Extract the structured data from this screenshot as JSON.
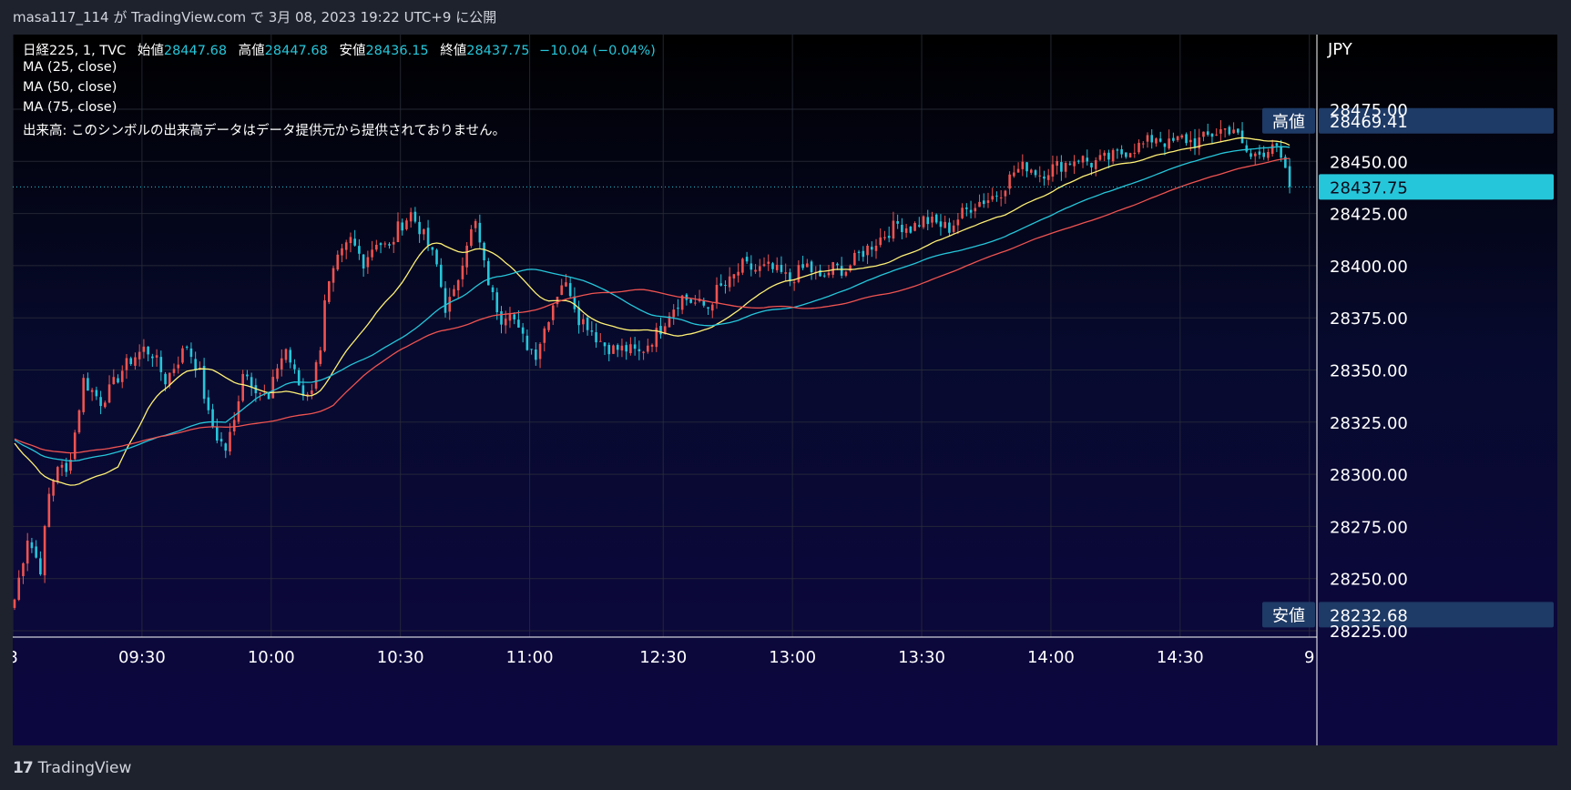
{
  "header": {
    "text": "masa117_114 が TradingView.com で 3月 08, 2023 19:22 UTC+9 に公開"
  },
  "legend": {
    "symbol": "日経225, 1, TVC",
    "open_label": "始値",
    "open": "28447.68",
    "high_label": "高値",
    "high": "28447.68",
    "low_label": "安値",
    "low": "28436.15",
    "close_label": "終値",
    "close": "28437.75",
    "change": "−10.04 (−0.04%)",
    "ma1": "MA (25, close)",
    "ma2": "MA (50, close)",
    "ma3": "MA (75, close)",
    "volume_note": "出来高: このシンボルの出来高データはデータ提供元から提供されておりません。"
  },
  "currency": "JPY",
  "footer": {
    "brand": "TradingView"
  },
  "colors": {
    "up": "#ef5350",
    "down": "#26c6da",
    "ma25": "#fff176",
    "ma50": "#26c6da",
    "ma75": "#ef5350",
    "price_tag": "#26c6da",
    "hl_tag": "#1e3a66"
  },
  "chart_data": {
    "type": "candlestick",
    "symbol": "日経225",
    "interval": "1",
    "y_ticks": [
      28475,
      28450,
      28425,
      28400,
      28375,
      28350,
      28325,
      28300,
      28275,
      28250,
      28225
    ],
    "y_tick_labels": [
      "28475.00",
      "28450.00",
      "28425.00",
      "28400.00",
      "28375.00",
      "28350.00",
      "28325.00",
      "28300.00",
      "28275.00",
      "28250.00",
      "28225.00"
    ],
    "ylim": [
      28220,
      28490
    ],
    "x_ticks": [
      {
        "label": "8",
        "index": 0
      },
      {
        "label": "09:30",
        "index": 30
      },
      {
        "label": "10:00",
        "index": 60
      },
      {
        "label": "10:30",
        "index": 90
      },
      {
        "label": "11:00",
        "index": 120
      },
      {
        "label": "12:30",
        "index": 151
      },
      {
        "label": "13:00",
        "index": 181
      },
      {
        "label": "13:30",
        "index": 211
      },
      {
        "label": "14:00",
        "index": 241
      },
      {
        "label": "14:30",
        "index": 271
      },
      {
        "label": "9",
        "index": 301
      }
    ],
    "price_lines": {
      "high": {
        "label": "高値",
        "value": 28469.41,
        "text": "28469.41"
      },
      "last": {
        "value": 28437.75,
        "text": "28437.75"
      },
      "low": {
        "label": "安値",
        "value": 28232.68,
        "text": "28232.68"
      }
    },
    "anchors": [
      [
        0,
        28240
      ],
      [
        3,
        28270
      ],
      [
        6,
        28255
      ],
      [
        8,
        28290
      ],
      [
        10,
        28305
      ],
      [
        12,
        28300
      ],
      [
        14,
        28320
      ],
      [
        16,
        28345
      ],
      [
        18,
        28340
      ],
      [
        20,
        28335
      ],
      [
        22,
        28340
      ],
      [
        25,
        28350
      ],
      [
        27,
        28355
      ],
      [
        30,
        28360
      ],
      [
        32,
        28358
      ],
      [
        35,
        28345
      ],
      [
        38,
        28355
      ],
      [
        40,
        28362
      ],
      [
        43,
        28348
      ],
      [
        45,
        28328
      ],
      [
        47,
        28318
      ],
      [
        49,
        28312
      ],
      [
        51,
        28325
      ],
      [
        53,
        28350
      ],
      [
        56,
        28342
      ],
      [
        59,
        28335
      ],
      [
        61,
        28352
      ],
      [
        63,
        28360
      ],
      [
        65,
        28348
      ],
      [
        67,
        28338
      ],
      [
        69,
        28342
      ],
      [
        71,
        28362
      ],
      [
        72,
        28385
      ],
      [
        75,
        28402
      ],
      [
        78,
        28412
      ],
      [
        81,
        28402
      ],
      [
        84,
        28412
      ],
      [
        87,
        28408
      ],
      [
        89,
        28418
      ],
      [
        92,
        28425
      ],
      [
        94,
        28418
      ],
      [
        96,
        28410
      ],
      [
        98,
        28400
      ],
      [
        100,
        28380
      ],
      [
        102,
        28386
      ],
      [
        105,
        28412
      ],
      [
        107,
        28420
      ],
      [
        109,
        28400
      ],
      [
        111,
        28385
      ],
      [
        113,
        28375
      ],
      [
        115,
        28380
      ],
      [
        117,
        28368
      ],
      [
        119,
        28362
      ],
      [
        121,
        28358
      ],
      [
        123,
        28370
      ],
      [
        125,
        28382
      ],
      [
        127,
        28392
      ],
      [
        129,
        28388
      ],
      [
        131,
        28375
      ],
      [
        133,
        28372
      ],
      [
        135,
        28366
      ],
      [
        137,
        28362
      ],
      [
        139,
        28360
      ],
      [
        142,
        28360
      ],
      [
        145,
        28358
      ],
      [
        148,
        28365
      ],
      [
        150,
        28370
      ],
      [
        152,
        28378
      ],
      [
        155,
        28385
      ],
      [
        158,
        28382
      ],
      [
        161,
        28380
      ],
      [
        163,
        28388
      ],
      [
        166,
        28392
      ],
      [
        169,
        28400
      ],
      [
        172,
        28398
      ],
      [
        175,
        28399
      ],
      [
        178,
        28396
      ],
      [
        180,
        28393
      ],
      [
        182,
        28397
      ],
      [
        184,
        28400
      ],
      [
        187,
        28393
      ],
      [
        190,
        28399
      ],
      [
        193,
        28398
      ],
      [
        196,
        28405
      ],
      [
        199,
        28410
      ],
      [
        202,
        28415
      ],
      [
        205,
        28420
      ],
      [
        208,
        28418
      ],
      [
        211,
        28422
      ],
      [
        214,
        28420
      ],
      [
        217,
        28418
      ],
      [
        220,
        28425
      ],
      [
        223,
        28430
      ],
      [
        226,
        28432
      ],
      [
        229,
        28436
      ],
      [
        232,
        28445
      ],
      [
        235,
        28448
      ],
      [
        238,
        28444
      ],
      [
        241,
        28447
      ],
      [
        244,
        28449
      ],
      [
        247,
        28452
      ],
      [
        250,
        28449
      ],
      [
        253,
        28451
      ],
      [
        256,
        28453
      ],
      [
        259,
        28456
      ],
      [
        262,
        28458
      ],
      [
        265,
        28462
      ],
      [
        268,
        28458
      ],
      [
        271,
        28461
      ],
      [
        274,
        28459
      ],
      [
        277,
        28462
      ],
      [
        280,
        28465
      ],
      [
        283,
        28466
      ],
      [
        285,
        28457
      ],
      [
        287,
        28452
      ],
      [
        290,
        28455
      ],
      [
        292,
        28459
      ],
      [
        294,
        28450
      ],
      [
        296,
        28437.75
      ]
    ],
    "ma_periods": [
      25,
      50,
      75
    ]
  }
}
